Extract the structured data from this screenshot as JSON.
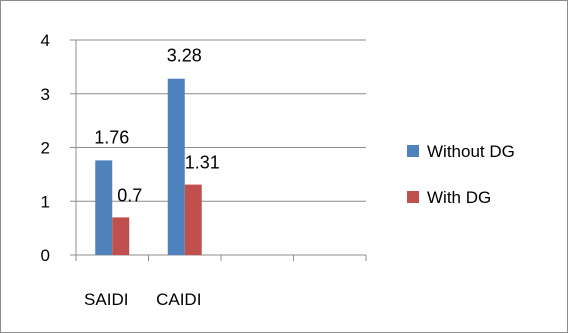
{
  "chart_data": {
    "type": "bar",
    "categories": [
      "SAIDI",
      "CAIDI"
    ],
    "series": [
      {
        "name": "Without DG",
        "values": [
          1.76,
          3.28
        ],
        "labels": [
          "1.76",
          "3.28"
        ],
        "color": "#4f81bd"
      },
      {
        "name": "With DG",
        "values": [
          0.7,
          1.31
        ],
        "labels": [
          "0.7",
          "1.31"
        ],
        "color": "#c0504d"
      }
    ],
    "ylim": [
      0,
      4
    ],
    "yticks": [
      "0",
      "1",
      "2",
      "3",
      "4"
    ],
    "grid": true,
    "legend": "right",
    "title": "",
    "xlabel": "",
    "ylabel": ""
  }
}
